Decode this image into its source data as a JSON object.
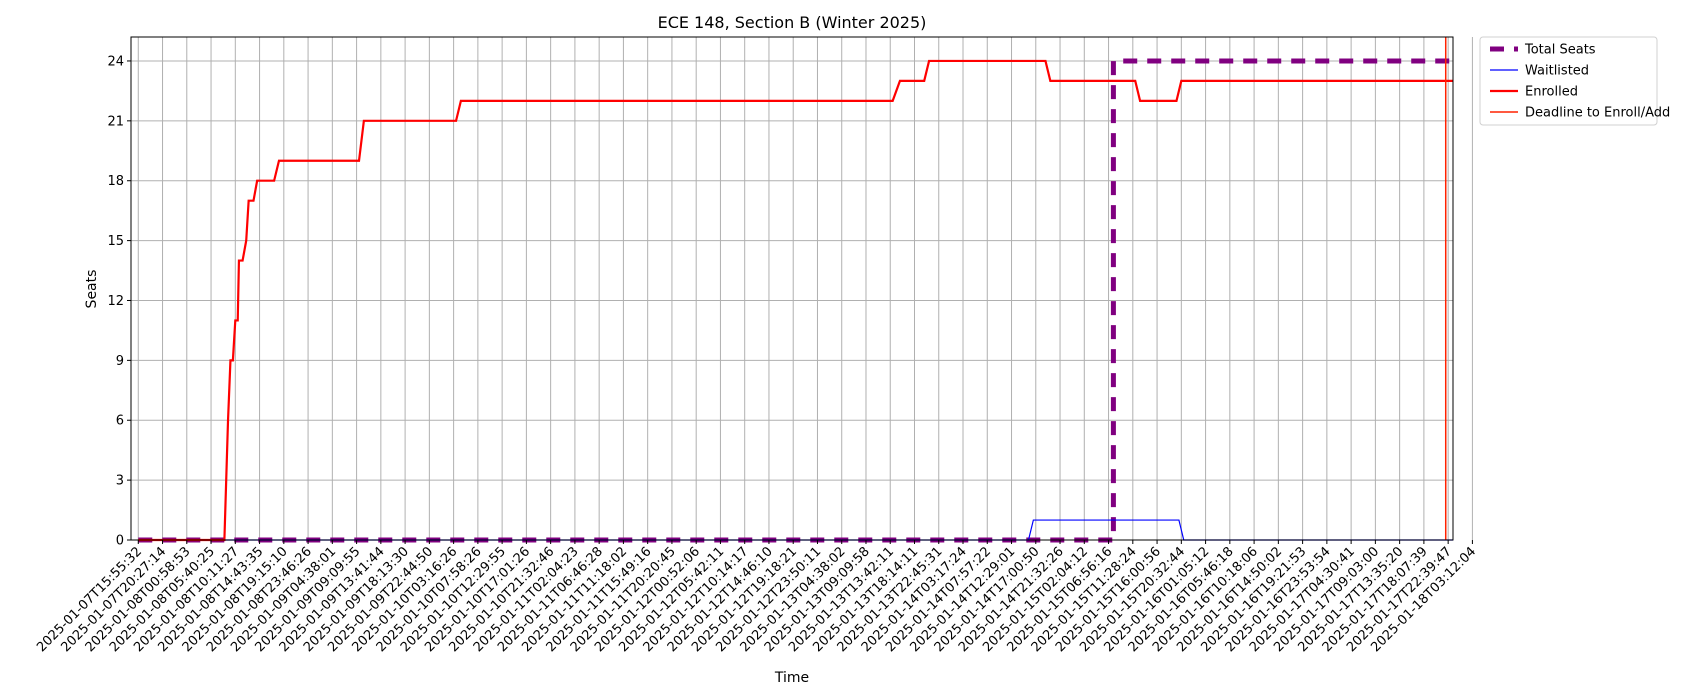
{
  "chart_data": {
    "type": "line",
    "title": "ECE 148, Section B (Winter 2025)",
    "xlabel": "Time",
    "ylabel": "Seats",
    "ylim": [
      0,
      25.2
    ],
    "yticks": [
      0,
      3,
      6,
      9,
      12,
      15,
      18,
      21,
      24
    ],
    "grid": true,
    "legend_position": "outside-top-right",
    "x_tick_labels": [
      "2025-01-07T15:55:32",
      "2025-01-07T20:27:14",
      "2025-01-08T00:58:53",
      "2025-01-08T05:40:25",
      "2025-01-08T10:11:27",
      "2025-01-08T14:43:35",
      "2025-01-08T19:15:10",
      "2025-01-08T23:46:26",
      "2025-01-09T04:38:01",
      "2025-01-09T09:09:55",
      "2025-01-09T13:41:44",
      "2025-01-09T18:13:30",
      "2025-01-09T22:44:50",
      "2025-01-10T03:16:26",
      "2025-01-10T07:58:26",
      "2025-01-10T12:29:55",
      "2025-01-10T17:01:26",
      "2025-01-10T21:32:46",
      "2025-01-11T02:04:23",
      "2025-01-11T06:46:28",
      "2025-01-11T11:18:02",
      "2025-01-11T15:49:16",
      "2025-01-11T20:20:45",
      "2025-01-12T00:52:06",
      "2025-01-12T05:42:11",
      "2025-01-12T10:14:17",
      "2025-01-12T14:46:10",
      "2025-01-12T19:18:21",
      "2025-01-12T23:50:11",
      "2025-01-13T04:38:02",
      "2025-01-13T09:09:58",
      "2025-01-13T13:42:11",
      "2025-01-13T18:14:11",
      "2025-01-13T22:45:31",
      "2025-01-14T03:17:24",
      "2025-01-14T07:57:22",
      "2025-01-14T12:29:01",
      "2025-01-14T17:00:50",
      "2025-01-14T21:32:26",
      "2025-01-15T02:04:12",
      "2025-01-15T06:56:16",
      "2025-01-15T11:28:24",
      "2025-01-15T16:00:56",
      "2025-01-15T20:32:44",
      "2025-01-16T01:05:12",
      "2025-01-16T05:46:18",
      "2025-01-16T10:18:06",
      "2025-01-16T14:50:02",
      "2025-01-16T19:21:53",
      "2025-01-16T23:53:54",
      "2025-01-17T04:30:41",
      "2025-01-17T09:03:00",
      "2025-01-17T13:35:20",
      "2025-01-17T18:07:39",
      "2025-01-17T22:39:47",
      "2025-01-18T03:12:04"
    ],
    "x_range": [
      -0.3,
      54.2
    ],
    "series": [
      {
        "name": "Total Seats",
        "color": "#800080",
        "style": "dashed-thick",
        "points": [
          [
            0,
            0
          ],
          [
            40.2,
            0
          ],
          [
            40.2,
            24
          ],
          [
            54.2,
            24
          ]
        ]
      },
      {
        "name": "Waitlisted",
        "color": "#0000ff",
        "style": "solid-thin",
        "points": [
          [
            0,
            0
          ],
          [
            36.7,
            0
          ],
          [
            36.9,
            1
          ],
          [
            42.9,
            1
          ],
          [
            43.1,
            0
          ],
          [
            54.2,
            0
          ]
        ]
      },
      {
        "name": "Enrolled",
        "color": "#ff0000",
        "style": "solid",
        "points": [
          [
            0,
            0
          ],
          [
            3.55,
            0
          ],
          [
            3.65,
            4
          ],
          [
            3.7,
            6
          ],
          [
            3.8,
            9
          ],
          [
            3.9,
            9
          ],
          [
            4.0,
            11
          ],
          [
            4.1,
            11
          ],
          [
            4.15,
            14
          ],
          [
            4.3,
            14
          ],
          [
            4.45,
            15
          ],
          [
            4.55,
            17
          ],
          [
            4.75,
            17
          ],
          [
            4.9,
            18
          ],
          [
            5.6,
            18
          ],
          [
            5.8,
            19
          ],
          [
            9.1,
            19
          ],
          [
            9.3,
            21
          ],
          [
            13.1,
            21
          ],
          [
            13.3,
            22
          ],
          [
            31.1,
            22
          ],
          [
            31.4,
            23
          ],
          [
            32.4,
            23
          ],
          [
            32.6,
            24
          ],
          [
            37.4,
            24
          ],
          [
            37.6,
            23
          ],
          [
            41.1,
            23
          ],
          [
            41.3,
            22
          ],
          [
            42.8,
            22
          ],
          [
            43.0,
            23
          ],
          [
            54.2,
            23
          ]
        ]
      },
      {
        "name": "Deadline to Enroll/Add",
        "color": "#ff2200",
        "style": "vertical-line",
        "x": 53.9
      }
    ]
  }
}
